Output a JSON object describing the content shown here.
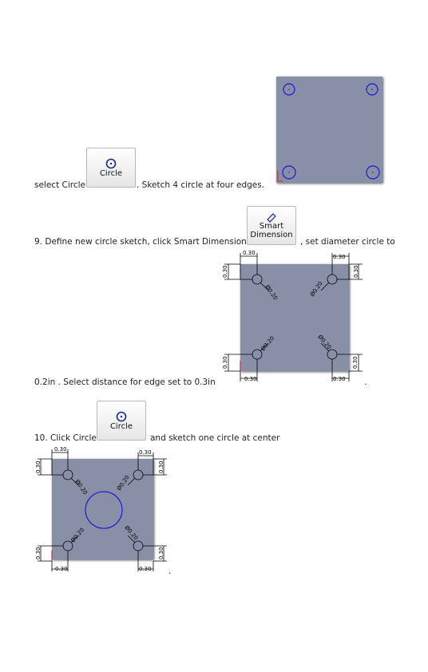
{
  "step8": {
    "prefix": "select Circle",
    "suffix": ". Sketch 4 circle at four edges.",
    "button_label": "Circle"
  },
  "step9": {
    "prefix": "9. Define new circle sketch, click Smart Dimension",
    "suffix": ", set diameter circle to",
    "button_label": "Smart\nDimension",
    "line2": "0.2in . Select distance for edge set to 0.3in",
    "line2_end": "."
  },
  "step10": {
    "prefix": "10. Click Circle",
    "suffix": "and sketch one circle at center",
    "button_label": "Circle",
    "end": "."
  },
  "dims": {
    "edge": "0.30",
    "dia": "Ø0.20"
  },
  "colors": {
    "plate": "#8a8fa8",
    "circle_blue": "#1a1ad0",
    "dim_line": "#000000"
  }
}
